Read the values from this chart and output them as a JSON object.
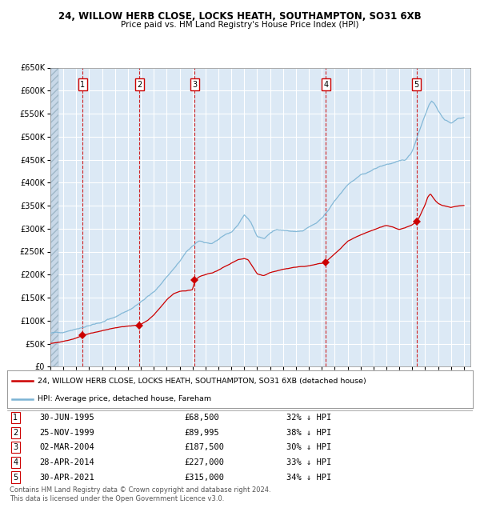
{
  "title_line1": "24, WILLOW HERB CLOSE, LOCKS HEATH, SOUTHAMPTON, SO31 6XB",
  "title_line2": "Price paid vs. HM Land Registry's House Price Index (HPI)",
  "plot_bg_color": "#dce9f5",
  "hpi_color": "#7ab3d4",
  "price_color": "#cc0000",
  "yticks": [
    0,
    50000,
    100000,
    150000,
    200000,
    250000,
    300000,
    350000,
    400000,
    450000,
    500000,
    550000,
    600000,
    650000
  ],
  "purchases": [
    {
      "label": "1",
      "date_x": 1995.49,
      "price": 68500,
      "date_str": "30-JUN-1995",
      "price_str": "£68,500",
      "pct": "32% ↓ HPI"
    },
    {
      "label": "2",
      "date_x": 1999.9,
      "price": 89995,
      "date_str": "25-NOV-1999",
      "price_str": "£89,995",
      "pct": "38% ↓ HPI"
    },
    {
      "label": "3",
      "date_x": 2004.17,
      "price": 187500,
      "date_str": "02-MAR-2004",
      "price_str": "£187,500",
      "pct": "30% ↓ HPI"
    },
    {
      "label": "4",
      "date_x": 2014.32,
      "price": 227000,
      "date_str": "28-APR-2014",
      "price_str": "£227,000",
      "pct": "33% ↓ HPI"
    },
    {
      "label": "5",
      "date_x": 2021.33,
      "price": 315000,
      "date_str": "30-APR-2021",
      "price_str": "£315,000",
      "pct": "34% ↓ HPI"
    }
  ],
  "legend_line1": "24, WILLOW HERB CLOSE, LOCKS HEATH, SOUTHAMPTON, SO31 6XB (detached house)",
  "legend_line2": "HPI: Average price, detached house, Fareham",
  "footnote1": "Contains HM Land Registry data © Crown copyright and database right 2024.",
  "footnote2": "This data is licensed under the Open Government Licence v3.0.",
  "xlim_left": 1993.0,
  "xlim_right": 2025.5,
  "ylim_top": 650000,
  "hpi_anchors": [
    [
      1993.0,
      72000
    ],
    [
      1994.0,
      76000
    ],
    [
      1995.0,
      82000
    ],
    [
      1996.0,
      90000
    ],
    [
      1997.0,
      96000
    ],
    [
      1998.0,
      108000
    ],
    [
      1999.0,
      122000
    ],
    [
      2000.0,
      140000
    ],
    [
      2001.0,
      162000
    ],
    [
      2002.0,
      195000
    ],
    [
      2003.0,
      228000
    ],
    [
      2003.5,
      248000
    ],
    [
      2004.0,
      262000
    ],
    [
      2004.5,
      272000
    ],
    [
      2005.0,
      270000
    ],
    [
      2005.5,
      268000
    ],
    [
      2006.0,
      276000
    ],
    [
      2007.0,
      292000
    ],
    [
      2007.5,
      308000
    ],
    [
      2008.0,
      330000
    ],
    [
      2008.5,
      315000
    ],
    [
      2009.0,
      282000
    ],
    [
      2009.5,
      278000
    ],
    [
      2010.0,
      292000
    ],
    [
      2010.5,
      298000
    ],
    [
      2011.0,
      296000
    ],
    [
      2011.5,
      295000
    ],
    [
      2012.0,
      293000
    ],
    [
      2012.5,
      294000
    ],
    [
      2013.0,
      302000
    ],
    [
      2013.5,
      310000
    ],
    [
      2014.0,
      322000
    ],
    [
      2014.5,
      340000
    ],
    [
      2015.0,
      362000
    ],
    [
      2015.5,
      378000
    ],
    [
      2016.0,
      395000
    ],
    [
      2016.5,
      405000
    ],
    [
      2017.0,
      415000
    ],
    [
      2017.5,
      422000
    ],
    [
      2018.0,
      428000
    ],
    [
      2018.5,
      435000
    ],
    [
      2019.0,
      440000
    ],
    [
      2019.5,
      442000
    ],
    [
      2020.0,
      445000
    ],
    [
      2020.5,
      450000
    ],
    [
      2021.0,
      468000
    ],
    [
      2021.5,
      510000
    ],
    [
      2022.0,
      548000
    ],
    [
      2022.3,
      570000
    ],
    [
      2022.5,
      578000
    ],
    [
      2022.7,
      572000
    ],
    [
      2023.0,
      558000
    ],
    [
      2023.5,
      535000
    ],
    [
      2024.0,
      530000
    ],
    [
      2024.5,
      538000
    ],
    [
      2025.0,
      542000
    ]
  ],
  "price_anchors": [
    [
      1993.0,
      50000
    ],
    [
      1994.5,
      58000
    ],
    [
      1995.0,
      63000
    ],
    [
      1995.49,
      68500
    ],
    [
      1996.0,
      72000
    ],
    [
      1997.0,
      78000
    ],
    [
      1997.5,
      81000
    ],
    [
      1998.0,
      84000
    ],
    [
      1998.5,
      87000
    ],
    [
      1999.0,
      88000
    ],
    [
      1999.5,
      89000
    ],
    [
      1999.9,
      89995
    ],
    [
      2000.5,
      100000
    ],
    [
      2001.0,
      112000
    ],
    [
      2001.5,
      128000
    ],
    [
      2002.0,
      145000
    ],
    [
      2002.5,
      157000
    ],
    [
      2003.0,
      163000
    ],
    [
      2003.5,
      165000
    ],
    [
      2004.0,
      168000
    ],
    [
      2004.17,
      187500
    ],
    [
      2004.5,
      196000
    ],
    [
      2005.0,
      200000
    ],
    [
      2005.5,
      203000
    ],
    [
      2006.0,
      210000
    ],
    [
      2006.5,
      218000
    ],
    [
      2007.0,
      225000
    ],
    [
      2007.5,
      232000
    ],
    [
      2008.0,
      235000
    ],
    [
      2008.3,
      232000
    ],
    [
      2008.7,
      215000
    ],
    [
      2009.0,
      202000
    ],
    [
      2009.5,
      198000
    ],
    [
      2010.0,
      204000
    ],
    [
      2010.5,
      208000
    ],
    [
      2011.0,
      212000
    ],
    [
      2011.5,
      214000
    ],
    [
      2012.0,
      216000
    ],
    [
      2012.5,
      218000
    ],
    [
      2013.0,
      220000
    ],
    [
      2013.5,
      222000
    ],
    [
      2014.0,
      224000
    ],
    [
      2014.32,
      227000
    ],
    [
      2015.0,
      245000
    ],
    [
      2015.5,
      258000
    ],
    [
      2016.0,
      272000
    ],
    [
      2016.5,
      280000
    ],
    [
      2017.0,
      286000
    ],
    [
      2017.5,
      292000
    ],
    [
      2018.0,
      297000
    ],
    [
      2018.5,
      302000
    ],
    [
      2019.0,
      306000
    ],
    [
      2019.5,
      304000
    ],
    [
      2020.0,
      298000
    ],
    [
      2020.5,
      302000
    ],
    [
      2021.0,
      308000
    ],
    [
      2021.33,
      315000
    ],
    [
      2021.5,
      322000
    ],
    [
      2022.0,
      352000
    ],
    [
      2022.2,
      368000
    ],
    [
      2022.4,
      375000
    ],
    [
      2022.6,
      368000
    ],
    [
      2022.8,
      360000
    ],
    [
      2023.0,
      355000
    ],
    [
      2023.3,
      350000
    ],
    [
      2023.7,
      347000
    ],
    [
      2024.0,
      345000
    ],
    [
      2024.5,
      348000
    ],
    [
      2025.0,
      350000
    ]
  ]
}
